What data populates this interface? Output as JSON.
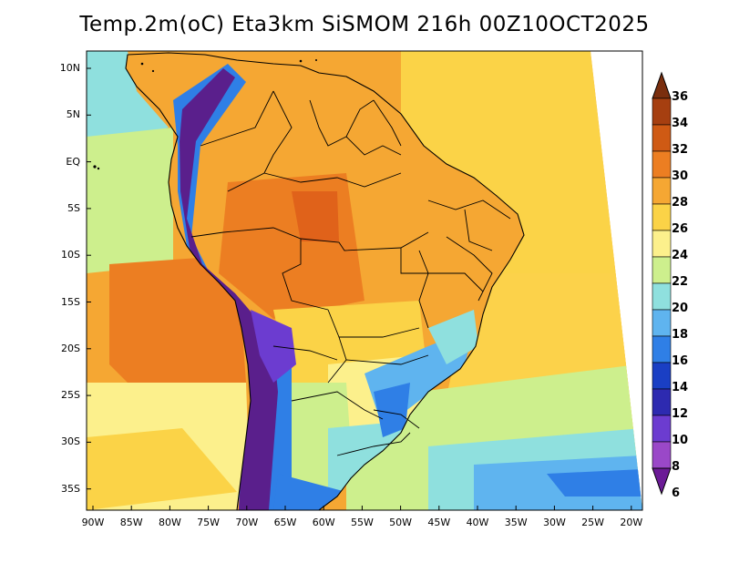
{
  "title": "Temp.2m(oC) Eta3km SiSMOM 216h 00Z10OCT2025",
  "lat_labels": [
    "10N",
    "5N",
    "EQ",
    "5S",
    "10S",
    "15S",
    "20S",
    "25S",
    "30S",
    "35S"
  ],
  "lon_labels": [
    "90W",
    "85W",
    "80W",
    "75W",
    "70W",
    "65W",
    "60W",
    "55W",
    "50W",
    "45W",
    "40W",
    "35W",
    "30W",
    "25W",
    "20W"
  ],
  "colorbar": {
    "labels": [
      "36",
      "34",
      "32",
      "30",
      "28",
      "26",
      "24",
      "22",
      "20",
      "18",
      "16",
      "14",
      "12",
      "10",
      "8",
      "6"
    ],
    "colors": [
      "#7a2e0e",
      "#a63f10",
      "#cf5a14",
      "#ec7e22",
      "#f5a733",
      "#fbd347",
      "#fcf08c",
      "#cdef8d",
      "#8fe0de",
      "#5fb4ef",
      "#2f7fe6",
      "#1a3fc4",
      "#2d2ab0",
      "#6c3cd0",
      "#9a48c8",
      "#6b1b96"
    ]
  },
  "map": {
    "ocean_colors": {
      "tropical_atlantic": "#f5a733",
      "south_atlantic_warm": "#fcd24a",
      "south_atlantic_mid": "#cdef8d",
      "south_atlantic_cool": "#8fe0de",
      "south_atlantic_cold": "#5fb4ef",
      "pacific_warm_pool": "#ec7e22",
      "pacific_coast_cool": "#cdef8d"
    },
    "land_colors": {
      "amazon": "#f5a733",
      "amazon_hot": "#ec7e22",
      "center_west": "#fbd347",
      "south": "#8fe0de",
      "andes": "#5a1f8c",
      "andes_foothill": "#2f7fe6"
    }
  }
}
